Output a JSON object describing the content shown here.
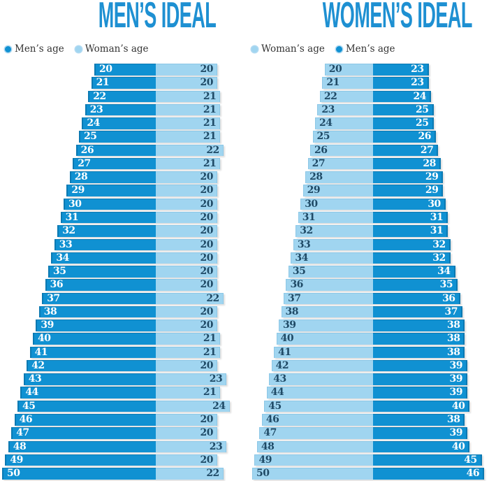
{
  "colors": {
    "dark_blue": "#1091d2",
    "light_blue": "#a0d5f0",
    "title_blue": "#1e90d2",
    "light_bar_label_navy": "#1f4a66",
    "legend_text": "#333333"
  },
  "chart_data": [
    {
      "type": "bar",
      "layout": "back-to-back-horizontal",
      "title": "MEN’S IDEAL",
      "legend_position": "top-left",
      "categories": [
        20,
        21,
        22,
        23,
        24,
        25,
        26,
        27,
        28,
        29,
        30,
        31,
        32,
        33,
        34,
        35,
        36,
        37,
        38,
        39,
        40,
        41,
        42,
        43,
        44,
        45,
        46,
        47,
        48,
        49,
        50
      ],
      "series": [
        {
          "name": "Men’s age",
          "key": "mens-age",
          "shade": "dark",
          "side": "left",
          "color": "#1091d2",
          "values": [
            20,
            21,
            22,
            23,
            24,
            25,
            26,
            27,
            28,
            29,
            30,
            31,
            32,
            33,
            34,
            35,
            36,
            37,
            38,
            39,
            40,
            41,
            42,
            43,
            44,
            45,
            46,
            47,
            48,
            49,
            50
          ]
        },
        {
          "name": "Woman’s age",
          "key": "womans-age",
          "shade": "light",
          "side": "right",
          "color": "#a0d5f0",
          "values": [
            20,
            20,
            21,
            21,
            21,
            21,
            22,
            21,
            20,
            20,
            20,
            20,
            20,
            20,
            20,
            20,
            20,
            22,
            20,
            20,
            21,
            21,
            20,
            23,
            21,
            24,
            20,
            20,
            23,
            20,
            22
          ]
        }
      ]
    },
    {
      "type": "bar",
      "layout": "back-to-back-horizontal",
      "title": "WOMEN’S IDEAL",
      "legend_position": "top-left",
      "categories": [
        20,
        21,
        22,
        23,
        24,
        25,
        26,
        27,
        28,
        29,
        30,
        31,
        32,
        33,
        34,
        35,
        36,
        37,
        38,
        39,
        40,
        41,
        42,
        43,
        44,
        45,
        46,
        47,
        48,
        49,
        50
      ],
      "series": [
        {
          "name": "Woman’s age",
          "key": "womans-age",
          "shade": "light",
          "side": "left",
          "color": "#a0d5f0",
          "values": [
            20,
            21,
            22,
            23,
            24,
            25,
            26,
            27,
            28,
            29,
            30,
            31,
            32,
            33,
            34,
            35,
            36,
            37,
            38,
            39,
            40,
            41,
            42,
            43,
            44,
            45,
            46,
            47,
            48,
            49,
            50
          ]
        },
        {
          "name": "Men’s age",
          "key": "mens-age",
          "shade": "dark",
          "side": "right",
          "color": "#1091d2",
          "values": [
            23,
            23,
            24,
            25,
            25,
            26,
            27,
            28,
            29,
            29,
            30,
            31,
            31,
            32,
            32,
            34,
            35,
            36,
            37,
            38,
            38,
            38,
            39,
            39,
            39,
            40,
            38,
            39,
            40,
            45,
            46
          ]
        }
      ]
    }
  ]
}
